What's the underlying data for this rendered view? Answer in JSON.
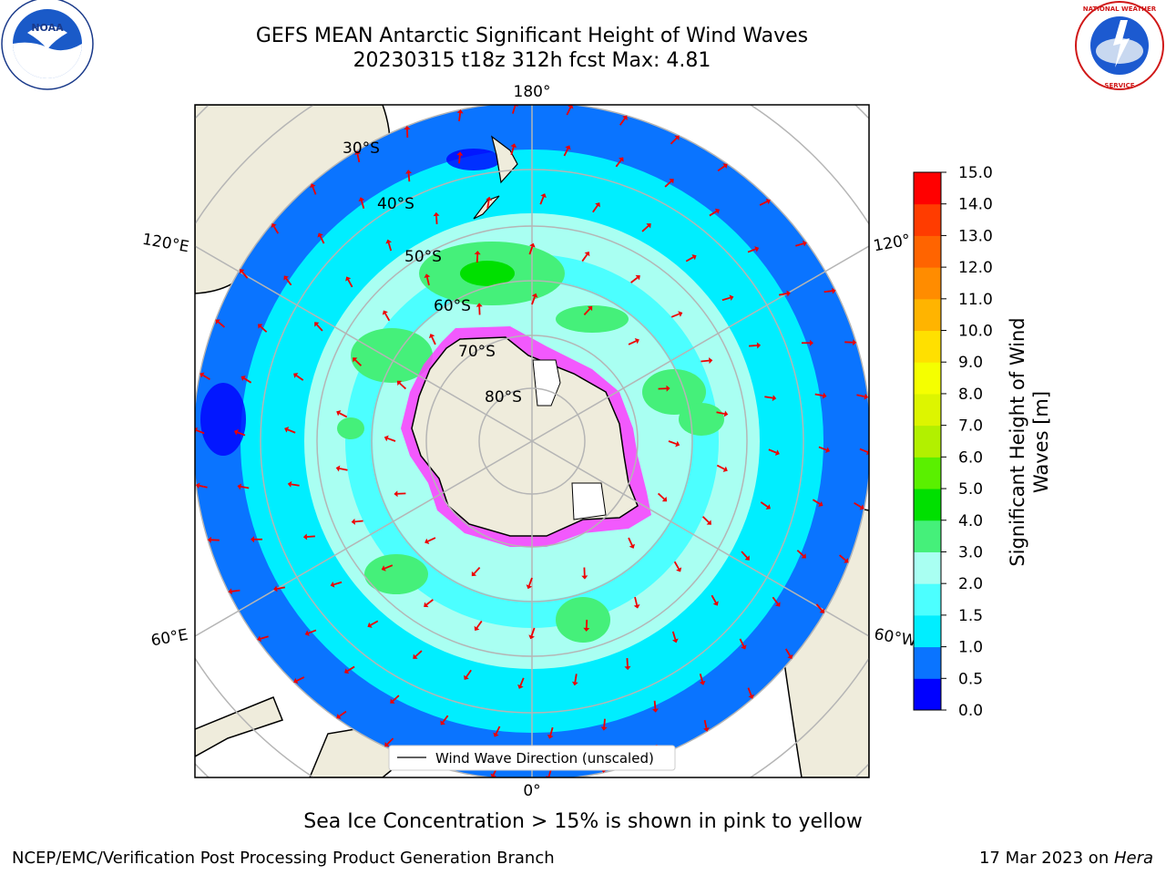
{
  "title": {
    "line1": "GEFS MEAN Antarctic Significant Height of Wind Waves",
    "line2": "20230315 t18z 312h fcst   Max: 4.81"
  },
  "map": {
    "lon_labels": [
      "180°",
      "120°E",
      "120°",
      "60°E",
      "60°W",
      "0°"
    ],
    "lat_labels": [
      "30°S",
      "40°S",
      "50°S",
      "60°S",
      "70°S",
      "80°S"
    ],
    "legend_label": "Wind Wave Direction (unscaled)",
    "colors": {
      "land": "#efecdc",
      "ocean_outside": "#ffffff",
      "ring_outer": "#0a74ff",
      "ring_mid": "#00eeff",
      "ring_inner": "#a9fff2",
      "green_blob": "#45f07a",
      "ice": "#ff3cff",
      "arrow": "#ee0000",
      "grid": "#b5b5b5"
    }
  },
  "colorbar": {
    "label": "Significant Height of Wind Waves [m]",
    "ticks": [
      "0.0",
      "0.5",
      "1.0",
      "1.5",
      "2.0",
      "3.0",
      "4.0",
      "5.0",
      "6.0",
      "7.0",
      "8.0",
      "9.0",
      "10.0",
      "11.0",
      "12.0",
      "13.0",
      "14.0",
      "15.0"
    ],
    "colors": [
      "#0000ff",
      "#0a74ff",
      "#00eeff",
      "#4cffff",
      "#a9fff2",
      "#45f07a",
      "#00e000",
      "#5af000",
      "#b2f000",
      "#ddf500",
      "#f5ff00",
      "#ffe000",
      "#ffb400",
      "#ff8c00",
      "#ff6400",
      "#ff3c00",
      "#ff0000"
    ]
  },
  "caption": "Sea Ice Concentration > 15% is shown in pink to yellow",
  "footer": {
    "left": "NCEP/EMC/Verification Post Processing Product Generation Branch",
    "date": "17 Mar 2023 on ",
    "host": "Hera"
  },
  "logos": {
    "noaa": "NOAA",
    "nws": "NATIONAL WEATHER SERVICE"
  }
}
